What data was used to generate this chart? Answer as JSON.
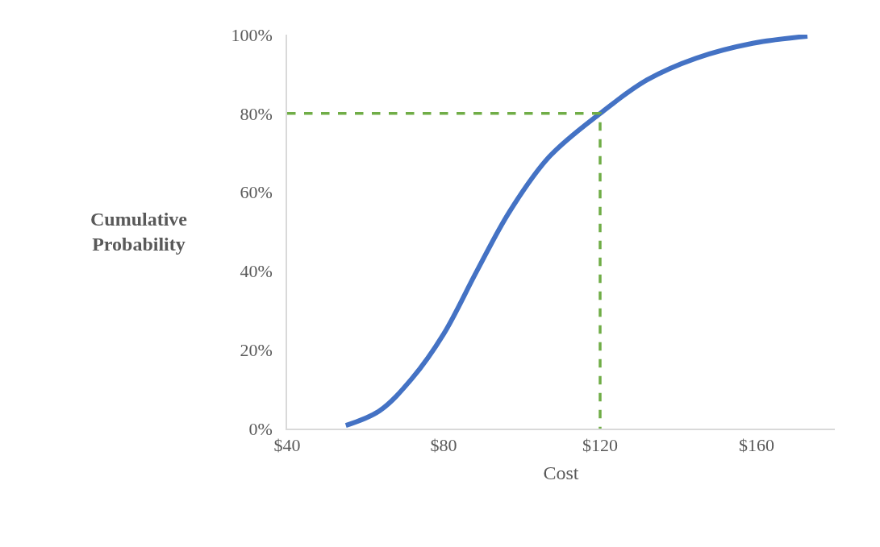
{
  "chart_data": {
    "type": "line",
    "xlabel": "Cost",
    "ylabel": "Cumulative\nProbability",
    "xlim": [
      40,
      180
    ],
    "xticks": [
      {
        "value": 40,
        "label": "$40"
      },
      {
        "value": 80,
        "label": "$80"
      },
      {
        "value": 120,
        "label": "$120"
      },
      {
        "value": 160,
        "label": "$160"
      }
    ],
    "ylim": [
      0,
      100
    ],
    "yticks": [
      {
        "value": 0,
        "label": "0%"
      },
      {
        "value": 20,
        "label": "20%"
      },
      {
        "value": 40,
        "label": "40%"
      },
      {
        "value": 60,
        "label": "60%"
      },
      {
        "value": 80,
        "label": "80%"
      },
      {
        "value": 100,
        "label": "100%"
      }
    ],
    "marker": "none",
    "series": [
      {
        "color": "#4472c4",
        "line_style": "solid",
        "x": [
          55,
          63.6,
          71.9,
          80,
          88.5,
          96.8,
          107,
          120,
          132,
          144.5,
          159,
          173
        ],
        "values": [
          0.8,
          4.5,
          12.7,
          24,
          40,
          55,
          69,
          80,
          88.5,
          94,
          97.8,
          99.6
        ]
      },
      {
        "color": "#70ad47",
        "line_style": "dashed",
        "x": [
          40,
          120,
          120
        ],
        "values": [
          80,
          80,
          0
        ]
      }
    ]
  }
}
